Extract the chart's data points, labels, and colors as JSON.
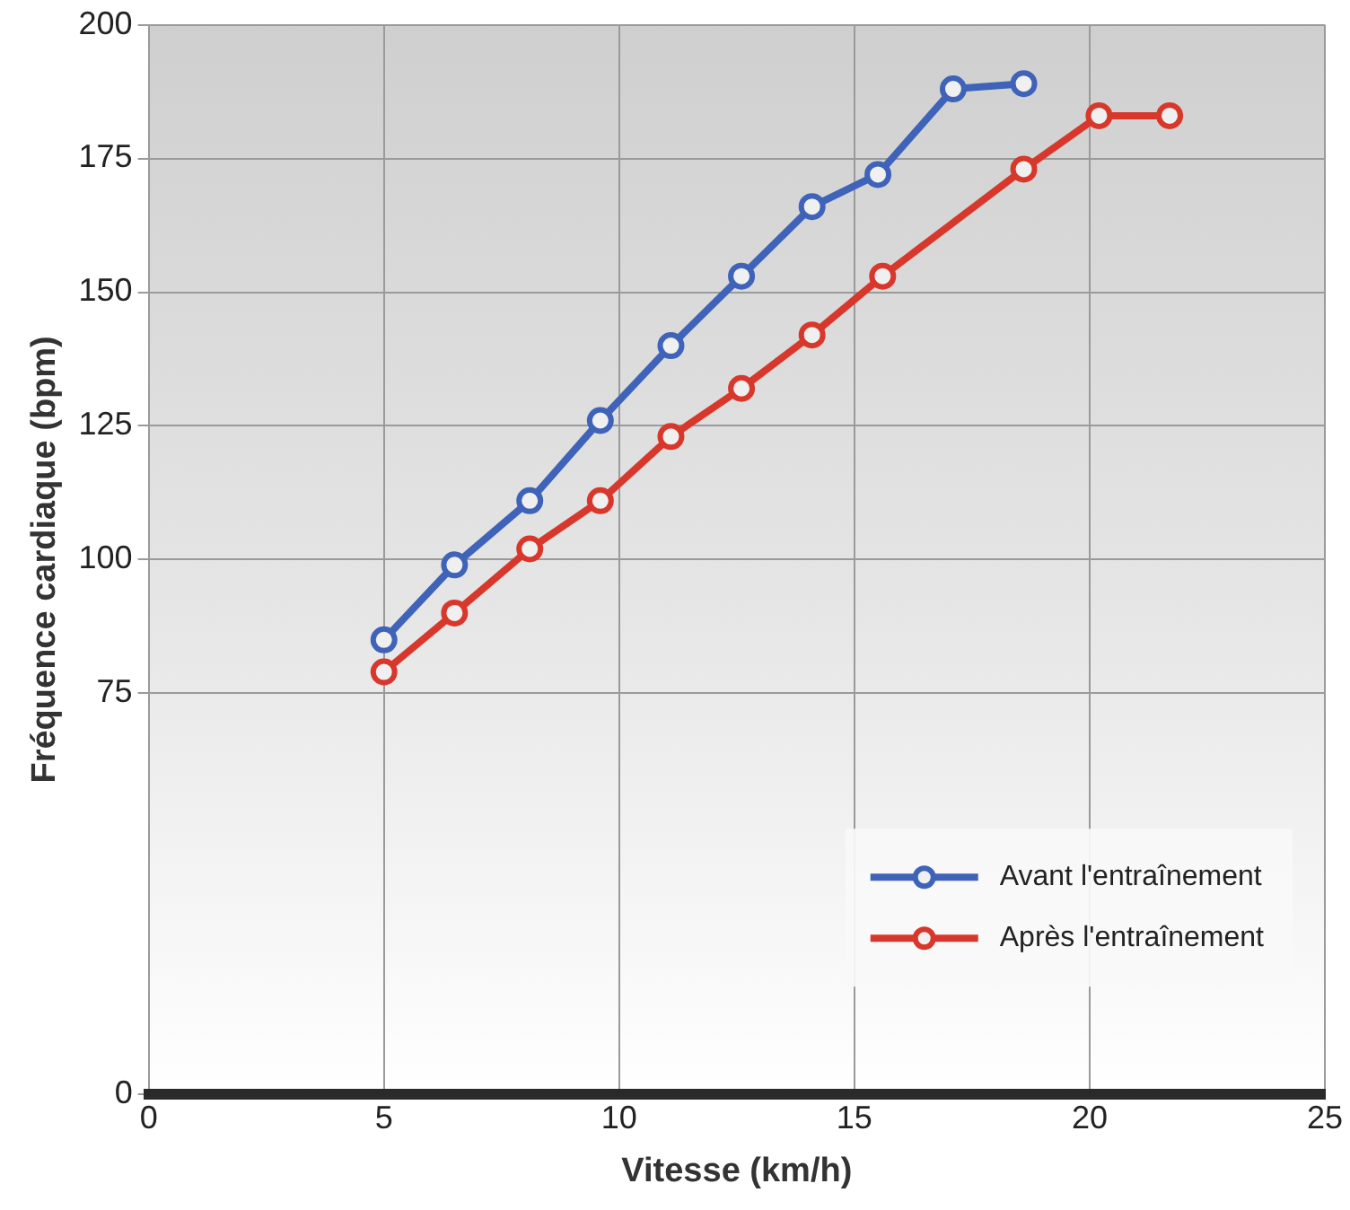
{
  "chart_data": {
    "type": "line",
    "xlabel": "Vitesse (km/h)",
    "ylabel": "Fréquence cardiaque (bpm)",
    "xlim": [
      0,
      25
    ],
    "xticks": [
      0,
      5,
      10,
      15,
      20,
      25
    ],
    "ylim": [
      0,
      200
    ],
    "yticks": [
      0,
      75,
      100,
      125,
      150,
      175,
      200
    ],
    "grid": true,
    "legend": "bottom right",
    "marker": "circle",
    "line_style": "solid",
    "series": [
      {
        "name": "Avant l'entraînement",
        "color": "#3f63b8",
        "x": [
          5.0,
          6.5,
          8.1,
          9.6,
          11.1,
          12.6,
          14.1,
          15.5,
          17.1,
          18.6
        ],
        "values": [
          85,
          99,
          111,
          126,
          140,
          153,
          166,
          172,
          188,
          189
        ]
      },
      {
        "name": "Après l'entraînement",
        "color": "#d8382c",
        "x": [
          5.0,
          6.5,
          8.1,
          9.6,
          11.1,
          12.6,
          14.1,
          15.6,
          18.6,
          20.2,
          21.7
        ],
        "values": [
          79,
          90,
          102,
          111,
          123,
          132,
          142,
          153,
          173,
          183,
          183
        ]
      }
    ]
  }
}
